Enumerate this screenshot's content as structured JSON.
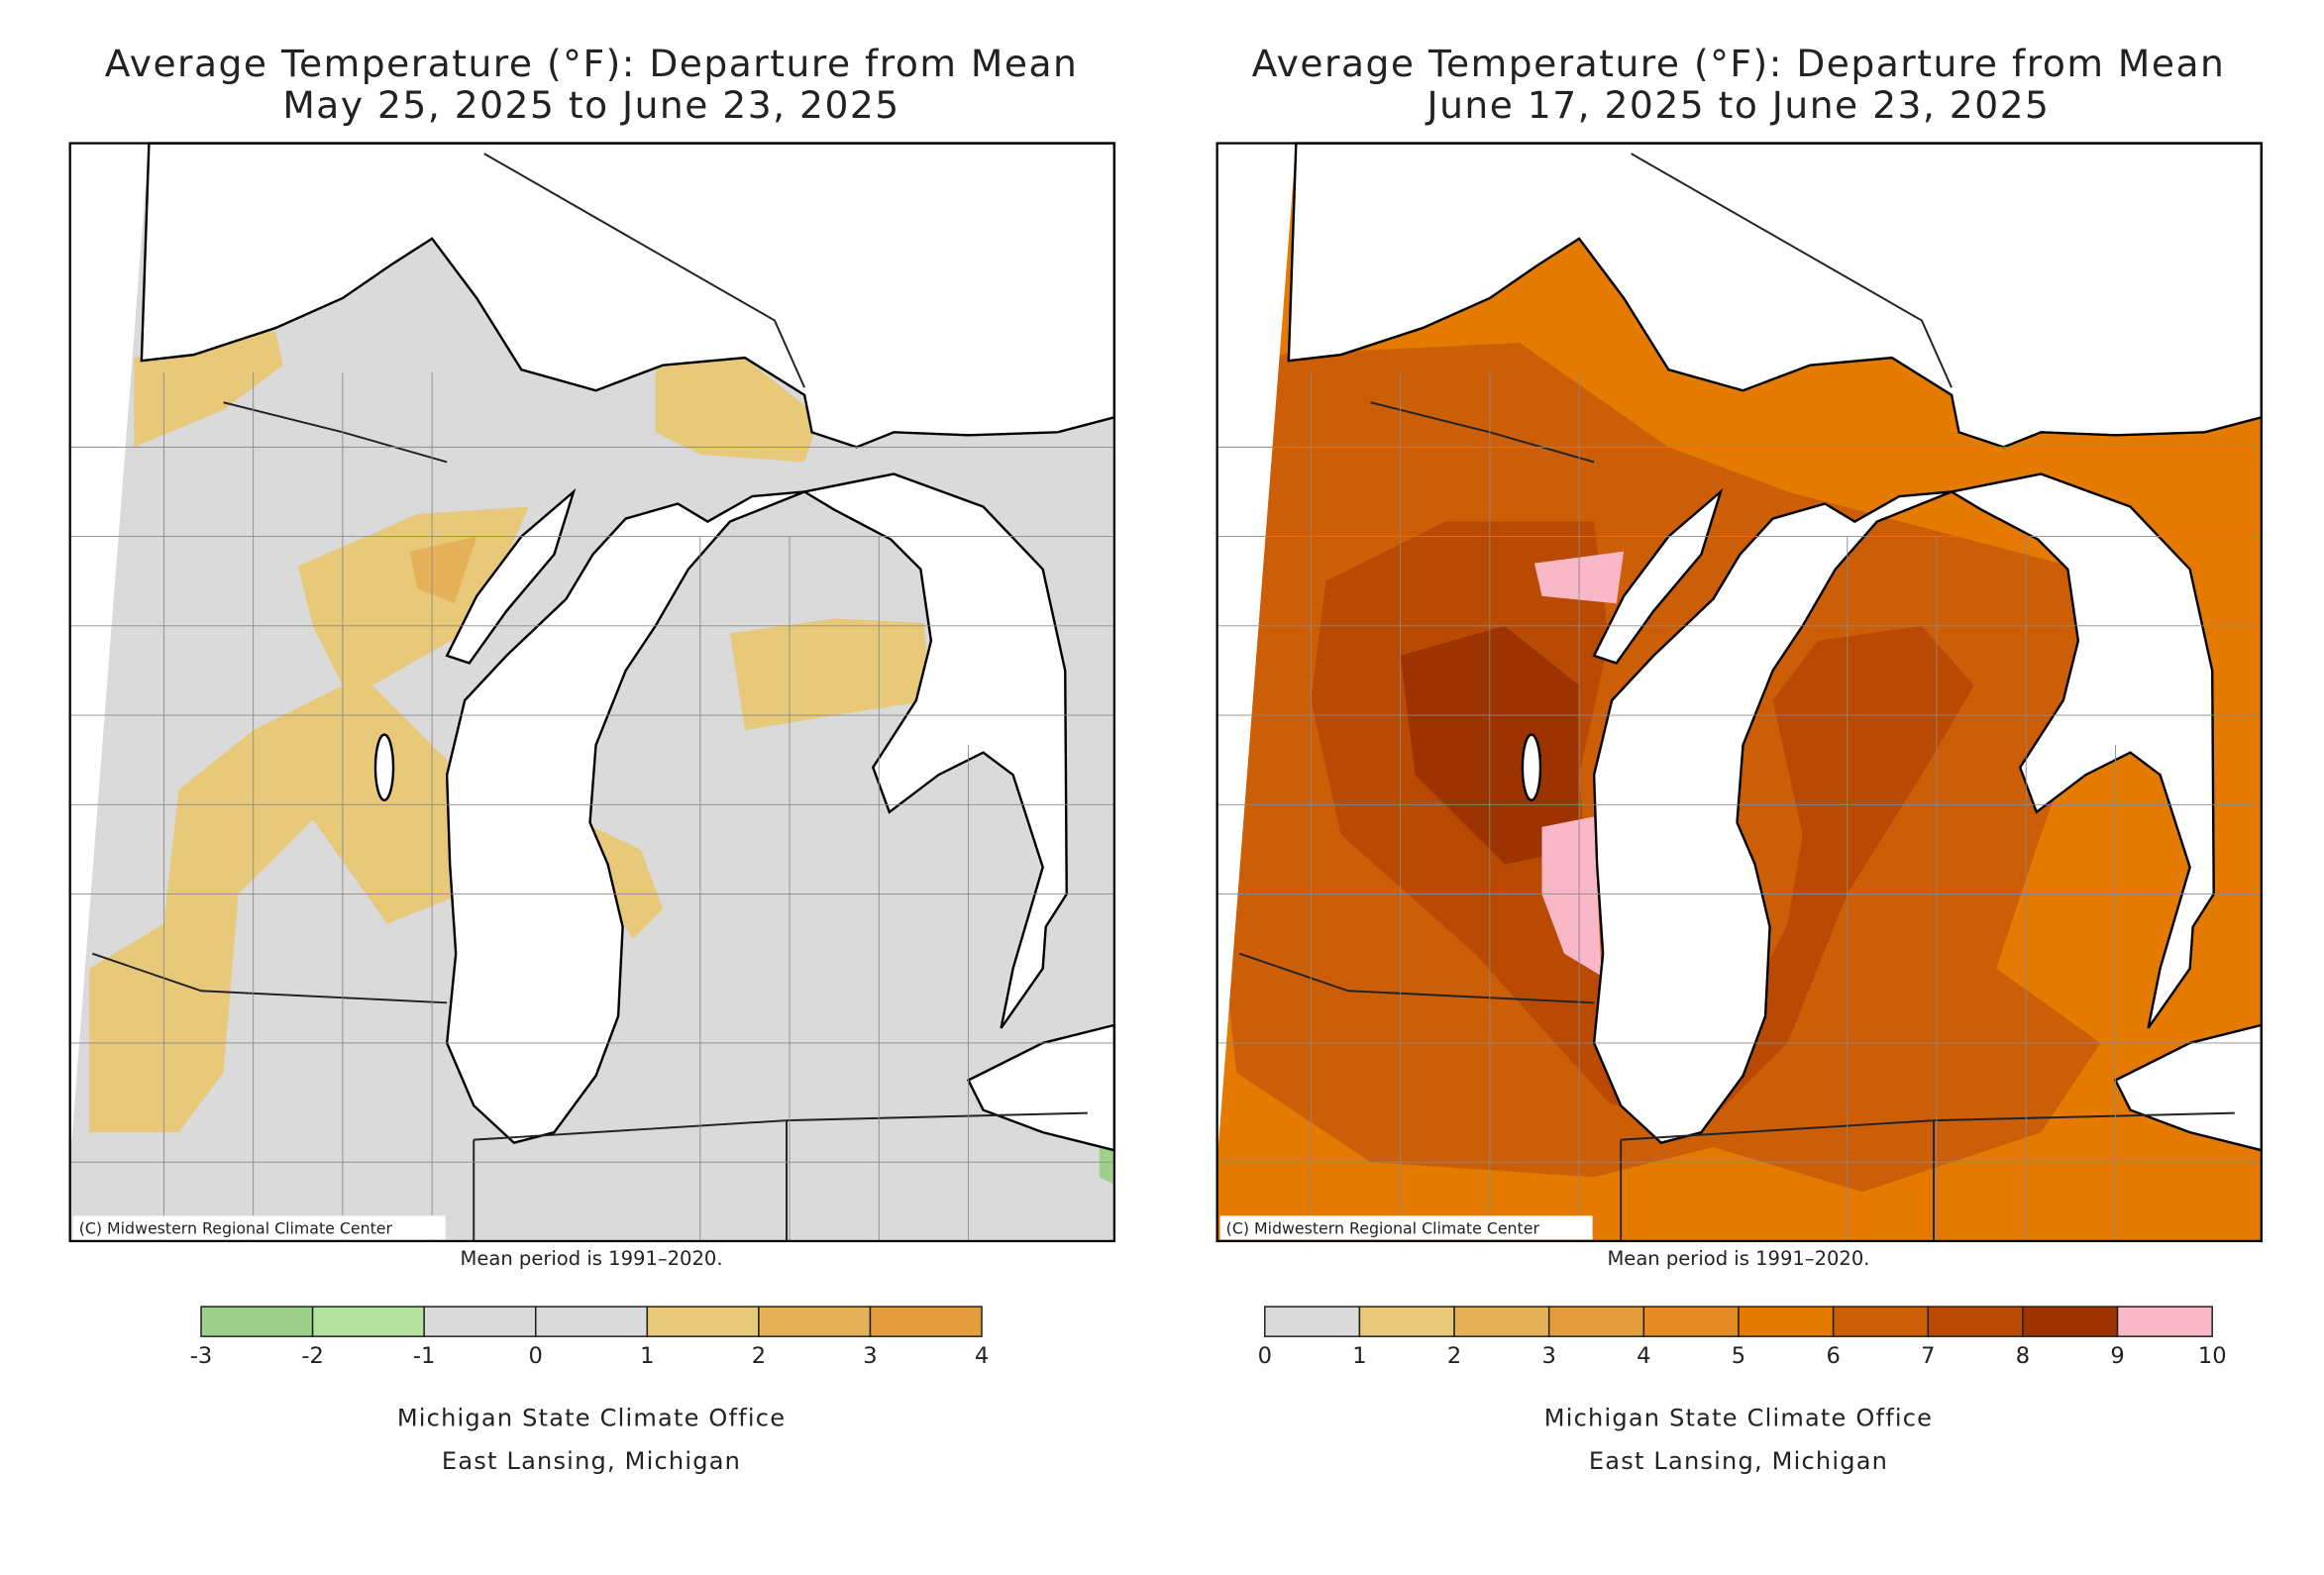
{
  "panels": [
    {
      "title_lines": [
        "Average Temperature (°F): Departure from Mean",
        "May 25, 2025 to June 23, 2025"
      ],
      "credit": "(C) Midwestern Regional Climate Center",
      "note": "Mean period is 1991–2020.",
      "legend": {
        "colors": [
          "#9dd08a",
          "#b5e2a1",
          "#dadada",
          "#dadada",
          "#e8c97a",
          "#e5b25a",
          "#e49d3c"
        ],
        "ticks": [
          -3,
          -2,
          -1,
          0,
          1,
          2,
          3,
          4
        ]
      },
      "office": [
        "Michigan State Climate Office",
        "East Lansing, Michigan"
      ]
    },
    {
      "title_lines": [
        "Average Temperature (°F): Departure from Mean",
        "June 17, 2025 to June 23, 2025"
      ],
      "credit": "(C) Midwestern Regional Climate Center",
      "note": "Mean period is 1991–2020.",
      "legend": {
        "colors": [
          "#dadada",
          "#e8c97a",
          "#e5b25a",
          "#e49d3c",
          "#e58c26",
          "#e47a00",
          "#cc5e08",
          "#b84a04",
          "#9c3300",
          "#f9b8c8"
        ],
        "ticks": [
          0,
          1,
          2,
          3,
          4,
          5,
          6,
          7,
          8,
          9,
          10
        ]
      },
      "office": [
        "Michigan State Climate Office",
        "East Lansing, Michigan"
      ]
    }
  ]
}
